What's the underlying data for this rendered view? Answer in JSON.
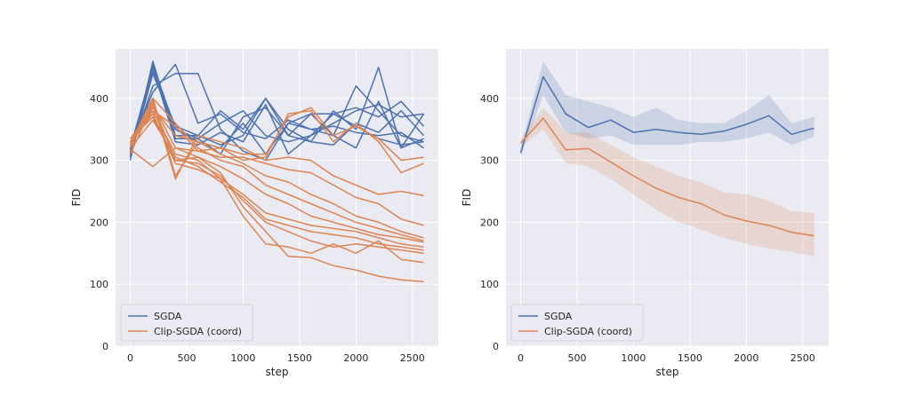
{
  "colors": {
    "sgda": "#4c72b0",
    "clip": "#dd8452",
    "background": "#eaeaf2",
    "grid": "#ffffff"
  },
  "chart_data": [
    {
      "type": "line",
      "title": "",
      "xlabel": "step",
      "ylabel": "FID",
      "xlim": [
        -130,
        2730
      ],
      "ylim": [
        0,
        480
      ],
      "xticks": [
        0,
        500,
        1000,
        1500,
        2000,
        2500
      ],
      "xtick_labels": [
        "0",
        "500",
        "1000",
        "1500",
        "2000",
        "2500"
      ],
      "yticks": [
        0,
        100,
        200,
        300,
        400
      ],
      "ytick_labels": [
        "0",
        "100",
        "200",
        "300",
        "400"
      ],
      "x": [
        0,
        200,
        400,
        600,
        800,
        1000,
        1200,
        1400,
        1600,
        1800,
        2000,
        2200,
        2400,
        2600
      ],
      "legend": {
        "location": "lower-left",
        "entries": [
          "SGDA",
          "Clip-SGDA (coord)"
        ]
      },
      "groups": [
        {
          "name": "SGDA",
          "color_key": "sgda",
          "runs": [
            [
              300,
              460,
              340,
              340,
              380,
              350,
              400,
              340,
              330,
              380,
              350,
              450,
              320,
              375
            ],
            [
              310,
              455,
              350,
              330,
              320,
              360,
              310,
              360,
              350,
              340,
              420,
              380,
              340,
              330
            ],
            [
              320,
              450,
              330,
              325,
              345,
              330,
              390,
              310,
              340,
              360,
              380,
              390,
              370,
              375
            ],
            [
              305,
              440,
              350,
              335,
              310,
              370,
              385,
              340,
              375,
              375,
              385,
              370,
              395,
              355
            ],
            [
              315,
              445,
              355,
              340,
              325,
              340,
              400,
              350,
              330,
              325,
              360,
              345,
              380,
              340
            ],
            [
              312,
              420,
              440,
              440,
              350,
              315,
              300,
              360,
              375,
              340,
              320,
              395,
              320,
              335
            ],
            [
              318,
              410,
              455,
              360,
              375,
              345,
              335,
              365,
              350,
              355,
              345,
              340,
              345,
              320
            ],
            [
              308,
              450,
              335,
              335,
              360,
              380,
              340,
              330,
              340,
              375,
              355,
              335,
              325,
              330
            ]
          ]
        },
        {
          "name": "Clip-SGDA (coord)",
          "color_key": "clip",
          "runs": [
            [
              330,
              390,
              320,
              305,
              280,
              225,
              185,
              145,
              143,
              130,
              123,
              113,
              107,
              104
            ],
            [
              325,
              380,
              310,
              300,
              270,
              210,
              165,
              160,
              150,
              165,
              150,
              170,
              140,
              135
            ],
            [
              335,
              370,
              300,
              295,
              275,
              235,
              200,
              185,
              170,
              160,
              165,
              160,
              155,
              150
            ],
            [
              320,
              365,
              305,
              290,
              265,
              240,
              205,
              195,
              185,
              180,
              175,
              165,
              160,
              155
            ],
            [
              330,
              375,
              295,
              285,
              270,
              245,
              215,
              205,
              195,
              190,
              185,
              175,
              165,
              160
            ],
            [
              310,
              390,
              300,
              305,
              290,
              270,
              245,
              230,
              210,
              200,
              190,
              180,
              175,
              168
            ],
            [
              325,
              400,
              360,
              320,
              300,
              290,
              260,
              245,
              230,
              215,
              200,
              190,
              180,
              170
            ],
            [
              330,
              385,
              340,
              330,
              310,
              295,
              275,
              265,
              245,
              230,
              210,
              200,
              185,
              175
            ],
            [
              335,
              380,
              355,
              315,
              305,
              305,
              295,
              285,
              280,
              260,
              240,
              230,
              205,
              195
            ],
            [
              320,
              395,
              270,
              340,
              330,
              320,
              300,
              305,
              300,
              275,
              260,
              245,
              250,
              243
            ],
            [
              318,
              290,
              320,
              315,
              320,
              300,
              305,
              375,
              380,
              330,
              360,
              330,
              280,
              295
            ],
            [
              328,
              400,
              275,
              330,
              320,
              310,
              310,
              370,
              385,
              340,
              355,
              335,
              300,
              305
            ]
          ]
        }
      ]
    },
    {
      "type": "line",
      "title": "",
      "xlabel": "step",
      "ylabel": "FID",
      "xlim": [
        -130,
        2730
      ],
      "ylim": [
        0,
        480
      ],
      "xticks": [
        0,
        500,
        1000,
        1500,
        2000,
        2500
      ],
      "xtick_labels": [
        "0",
        "500",
        "1000",
        "1500",
        "2000",
        "2500"
      ],
      "yticks": [
        0,
        100,
        200,
        300,
        400
      ],
      "ytick_labels": [
        "0",
        "100",
        "200",
        "300",
        "400"
      ],
      "x": [
        0,
        200,
        400,
        600,
        800,
        1000,
        1200,
        1400,
        1600,
        1800,
        2000,
        2200,
        2400,
        2600
      ],
      "legend": {
        "location": "lower-left",
        "entries": [
          "SGDA",
          "Clip-SGDA (coord)"
        ]
      },
      "series": [
        {
          "name": "SGDA",
          "color_key": "sgda",
          "mean": [
            312,
            435,
            375,
            353,
            365,
            345,
            350,
            345,
            342,
            347,
            358,
            372,
            342,
            352
          ],
          "lower": [
            305,
            405,
            345,
            335,
            340,
            325,
            325,
            325,
            330,
            330,
            335,
            345,
            325,
            338
          ],
          "upper": [
            320,
            460,
            405,
            395,
            385,
            370,
            385,
            365,
            360,
            360,
            380,
            405,
            360,
            370
          ]
        },
        {
          "name": "Clip-SGDA (coord)",
          "color_key": "clip",
          "mean": [
            328,
            368,
            317,
            319,
            297,
            275,
            255,
            240,
            230,
            212,
            202,
            195,
            184,
            178
          ],
          "lower": [
            322,
            350,
            295,
            290,
            270,
            245,
            220,
            200,
            188,
            175,
            165,
            158,
            152,
            145
          ],
          "upper": [
            335,
            385,
            345,
            345,
            325,
            305,
            290,
            275,
            265,
            248,
            245,
            235,
            218,
            215
          ]
        }
      ]
    }
  ]
}
